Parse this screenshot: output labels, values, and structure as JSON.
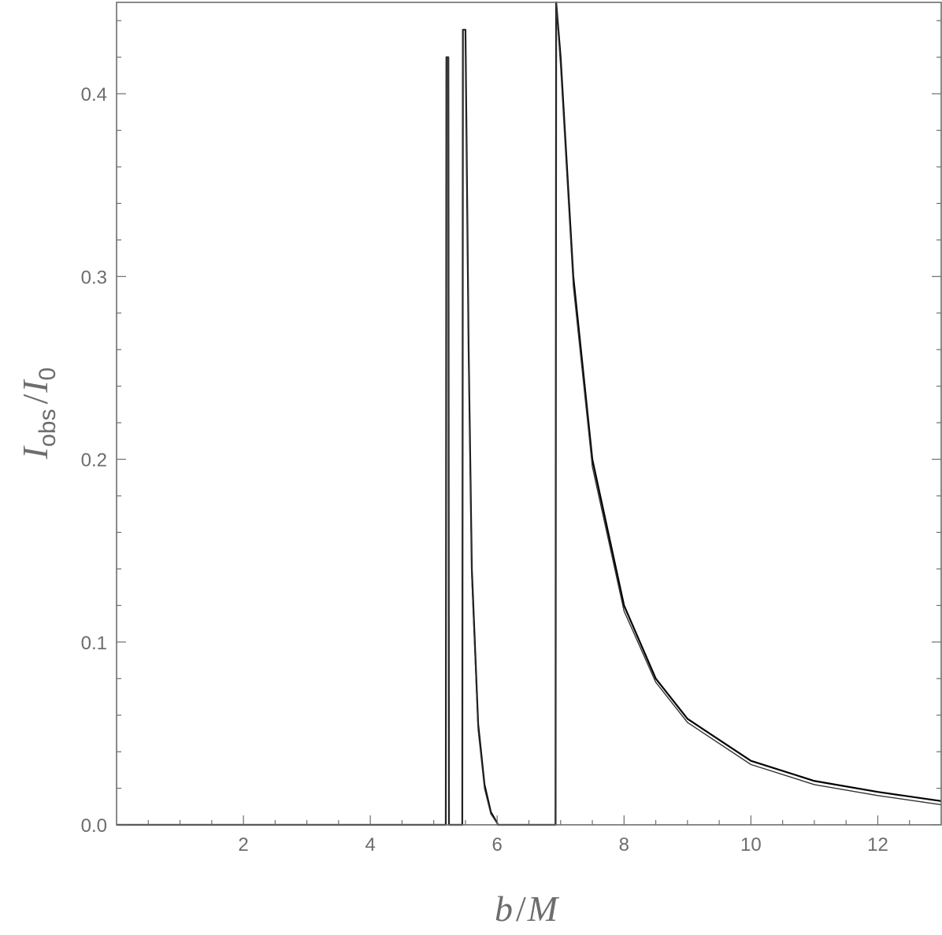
{
  "chart_data": {
    "type": "line",
    "title": "",
    "xlabel": "b / M",
    "ylabel": "I_obs / I_0",
    "xlabel_parts": {
      "b": "b",
      "slash": "/",
      "M": "M"
    },
    "ylabel_parts": {
      "I": "I",
      "obs": "obs",
      "slash": "/",
      "I0": "I",
      "zero": "0"
    },
    "xlim": [
      0,
      13
    ],
    "ylim": [
      0,
      0.45
    ],
    "x_ticks": [
      2,
      4,
      6,
      8,
      10,
      12
    ],
    "x_tick_labels": [
      "2",
      "4",
      "6",
      "8",
      "10",
      "12"
    ],
    "y_ticks": [
      0.0,
      0.1,
      0.2,
      0.3,
      0.4
    ],
    "y_tick_labels": [
      "0.0",
      "0.1",
      "0.2",
      "0.3",
      "0.4"
    ],
    "grid": false,
    "legend": "none",
    "series": [
      {
        "color": "#000000",
        "peaks": [
          {
            "b_start": 5.2,
            "b_end": 5.23,
            "peak": 0.42
          },
          {
            "b_start": 5.46,
            "b_end": 6.0,
            "peak": 0.435
          },
          {
            "b_start": 6.93,
            "b_end": 13.0,
            "peak": 0.45
          }
        ],
        "x": [
          0,
          5.19,
          5.2,
          5.23,
          5.24,
          5.45,
          5.46,
          5.5,
          5.55,
          5.6,
          5.7,
          5.8,
          5.9,
          6.0,
          6.01,
          6.92,
          6.93,
          7.0,
          7.2,
          7.5,
          8.0,
          8.5,
          9.0,
          10.0,
          11.0,
          12.0,
          13.0
        ],
        "y": [
          0,
          0,
          0.42,
          0.42,
          0,
          0,
          0.435,
          0.435,
          0.26,
          0.14,
          0.055,
          0.022,
          0.007,
          0.001,
          0,
          0,
          0.45,
          0.42,
          0.3,
          0.2,
          0.12,
          0.08,
          0.058,
          0.035,
          0.024,
          0.018,
          0.013
        ]
      },
      {
        "color": "#333333",
        "x": [
          0,
          5.19,
          5.2,
          5.23,
          5.24,
          5.45,
          5.46,
          5.5,
          5.55,
          5.6,
          5.7,
          5.8,
          5.9,
          6.0,
          6.01,
          6.92,
          6.93,
          7.0,
          7.2,
          7.5,
          8.0,
          8.5,
          9.0,
          10.0,
          11.0,
          12.0,
          13.0
        ],
        "y": [
          0,
          0,
          0.42,
          0.42,
          0,
          0,
          0.435,
          0.435,
          0.255,
          0.135,
          0.052,
          0.02,
          0.006,
          0.0008,
          0,
          0,
          0.45,
          0.415,
          0.295,
          0.196,
          0.117,
          0.078,
          0.056,
          0.033,
          0.022,
          0.016,
          0.011
        ]
      }
    ]
  }
}
